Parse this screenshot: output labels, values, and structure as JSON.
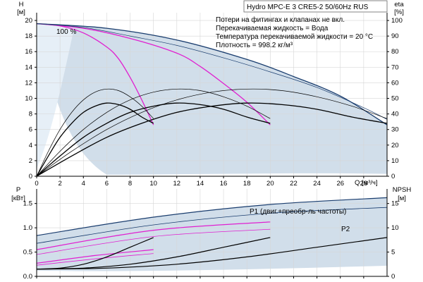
{
  "chart_data": [
    {
      "type": "line",
      "title": "Hydro MPC-E 3 CRE5-2 50/60Hz RUS",
      "notes": [
        "Потери на фитингах и клапанах не вкл.",
        "Перекачиваемая жидкость = Вода",
        "Температура перекачиваемой жидкости = 20 °C",
        "Плотность = 998.2 кг/м³"
      ],
      "speed_label": "100 %",
      "x_axis": {
        "label": "Q [м³/ч]",
        "range": [
          0,
          30
        ],
        "ticks": [
          0,
          2,
          4,
          6,
          8,
          10,
          12,
          14,
          16,
          18,
          20,
          22,
          24,
          26,
          28
        ]
      },
      "y_left": {
        "label": "H",
        "unit": "[м]",
        "range": [
          0,
          21
        ],
        "ticks": [
          0,
          2,
          4,
          6,
          8,
          10,
          12,
          14,
          16,
          18,
          20
        ]
      },
      "y_right": {
        "label": "eta",
        "unit": "[%]",
        "range": [
          0,
          105
        ],
        "ticks": [
          0,
          10,
          20,
          30,
          40,
          50,
          60,
          70,
          80,
          90,
          100
        ]
      },
      "series": [
        {
          "role": "head_1_pump",
          "color": "#e020d0",
          "points": [
            [
              0,
              19.6
            ],
            [
              2,
              19.3
            ],
            [
              4,
              18.4
            ],
            [
              6,
              16.6
            ],
            [
              7,
              15.1
            ],
            [
              8,
              12.7
            ],
            [
              9,
              9.8
            ],
            [
              10,
              6.6
            ]
          ]
        },
        {
          "role": "head_2_pumps",
          "color": "#e020d0",
          "points": [
            [
              0,
              19.6
            ],
            [
              4,
              19.0
            ],
            [
              8,
              17.7
            ],
            [
              12,
              15.8
            ],
            [
              14,
              14.1
            ],
            [
              16,
              11.9
            ],
            [
              18,
              9.5
            ],
            [
              20,
              6.6
            ]
          ]
        },
        {
          "role": "head_3_pumps_max",
          "color": "#1a3d6e",
          "points": [
            [
              0,
              19.6
            ],
            [
              6,
              19.0
            ],
            [
              12,
              17.5
            ],
            [
              18,
              15.0
            ],
            [
              22,
              12.8
            ],
            [
              26,
              10.3
            ],
            [
              30,
              6.6
            ]
          ]
        },
        {
          "role": "head_3_pumps_min",
          "color": "#1a3d6e",
          "points": [
            [
              0,
              19.6
            ],
            [
              4,
              19.1
            ],
            [
              8,
              18.0
            ],
            [
              12,
              16.8
            ],
            [
              16,
              15.2
            ],
            [
              20,
              13.4
            ],
            [
              24,
              11.4
            ],
            [
              28,
              8.8
            ],
            [
              30,
              7.3
            ]
          ]
        },
        {
          "role": "eta_1_pump",
          "color": "#000000",
          "points": [
            [
              0,
              0
            ],
            [
              1,
              13
            ],
            [
              2,
              25
            ],
            [
              3,
              34
            ],
            [
              4,
              41
            ],
            [
              5,
              45
            ],
            [
              6,
              47
            ],
            [
              7,
              46
            ],
            [
              8,
              43
            ],
            [
              9,
              38
            ],
            [
              10,
              34
            ]
          ]
        },
        {
          "role": "eta_2_pumps",
          "color": "#000000",
          "points": [
            [
              0,
              0
            ],
            [
              2,
              13
            ],
            [
              4,
              25
            ],
            [
              6,
              34
            ],
            [
              8,
              41
            ],
            [
              10,
              45
            ],
            [
              12,
              47
            ],
            [
              14,
              46
            ],
            [
              16,
              43
            ],
            [
              18,
              38
            ],
            [
              20,
              34
            ]
          ]
        },
        {
          "role": "eta_3_pumps",
          "color": "#000000",
          "points": [
            [
              0,
              0
            ],
            [
              3,
              13
            ],
            [
              6,
              25
            ],
            [
              9,
              34
            ],
            [
              12,
              41
            ],
            [
              15,
              45
            ],
            [
              18,
              47
            ],
            [
              21,
              46
            ],
            [
              24,
              43
            ],
            [
              27,
              38
            ],
            [
              30,
              34
            ]
          ]
        },
        {
          "role": "eta_1_pump_thin",
          "color": "#000000",
          "points": [
            [
              0,
              0
            ],
            [
              1,
              16
            ],
            [
              2,
              30
            ],
            [
              3,
              41
            ],
            [
              4,
              49
            ],
            [
              5,
              54
            ],
            [
              6,
              56
            ],
            [
              7,
              55
            ],
            [
              8,
              51
            ],
            [
              9,
              45
            ],
            [
              10,
              37
            ]
          ]
        },
        {
          "role": "eta_2_pumps_thin",
          "color": "#000000",
          "points": [
            [
              0,
              0
            ],
            [
              2,
              16
            ],
            [
              4,
              30
            ],
            [
              6,
              41
            ],
            [
              8,
              49
            ],
            [
              10,
              54
            ],
            [
              12,
              56
            ],
            [
              14,
              55
            ],
            [
              16,
              51
            ],
            [
              18,
              45
            ],
            [
              20,
              37
            ]
          ]
        },
        {
          "role": "eta_3_pumps_thin",
          "color": "#000000",
          "points": [
            [
              0,
              0
            ],
            [
              3,
              16
            ],
            [
              6,
              30
            ],
            [
              9,
              41
            ],
            [
              12,
              49
            ],
            [
              15,
              54
            ],
            [
              18,
              56
            ],
            [
              21,
              55
            ],
            [
              24,
              51
            ],
            [
              27,
              45
            ],
            [
              30,
              37
            ]
          ]
        }
      ]
    },
    {
      "type": "line",
      "x_axis": {
        "range": [
          0,
          30
        ],
        "ticks": [
          0,
          2,
          4,
          6,
          8,
          10,
          12,
          14,
          16,
          18,
          20,
          22,
          24,
          26,
          28
        ]
      },
      "y_left": {
        "label": "P",
        "unit": "[кВт]",
        "range": [
          0,
          1.8
        ],
        "ticks": [
          0,
          0.5,
          1.0,
          1.5
        ]
      },
      "y_right": {
        "label": "NPSH",
        "unit": "[м]",
        "range": [
          0,
          18
        ],
        "ticks": [
          0,
          5,
          10,
          15
        ]
      },
      "labels": {
        "p1": "P1 (двиг.+преобр-ль частоты)",
        "p2": "P2"
      },
      "series": [
        {
          "role": "p1_total",
          "color": "#1a3d6e",
          "points": [
            [
              0,
              0.84
            ],
            [
              10,
              1.22
            ],
            [
              20,
              1.48
            ],
            [
              30,
              1.62
            ]
          ]
        },
        {
          "role": "p2_total",
          "color": "#1a3d6e",
          "points": [
            [
              0,
              0.68
            ],
            [
              10,
              1.06
            ],
            [
              20,
              1.3
            ],
            [
              30,
              1.42
            ]
          ]
        },
        {
          "role": "p1_2_pumps",
          "color": "#e020d0",
          "points": [
            [
              0,
              0.55
            ],
            [
              10,
              0.95
            ],
            [
              20,
              1.12
            ]
          ]
        },
        {
          "role": "p2_2_pumps",
          "color": "#e020d0",
          "points": [
            [
              0,
              0.45
            ],
            [
              10,
              0.82
            ],
            [
              20,
              0.97
            ]
          ]
        },
        {
          "role": "p1_1_pump",
          "color": "#e020d0",
          "points": [
            [
              0,
              0.27
            ],
            [
              5,
              0.43
            ],
            [
              10,
              0.55
            ]
          ]
        },
        {
          "role": "p2_1_pump",
          "color": "#e020d0",
          "points": [
            [
              0,
              0.23
            ],
            [
              5,
              0.36
            ],
            [
              10,
              0.47
            ]
          ]
        },
        {
          "role": "npsh_1_pump",
          "color": "#000000",
          "points": [
            [
              0,
              1.5
            ],
            [
              2,
              1.7
            ],
            [
              4,
              2.5
            ],
            [
              6,
              4
            ],
            [
              8,
              6
            ],
            [
              10,
              8
            ]
          ]
        },
        {
          "role": "npsh_2_pumps",
          "color": "#000000",
          "points": [
            [
              0,
              1.5
            ],
            [
              4,
              1.7
            ],
            [
              8,
              2.5
            ],
            [
              12,
              4
            ],
            [
              16,
              6
            ],
            [
              20,
              8
            ]
          ]
        },
        {
          "role": "npsh_3_pumps",
          "color": "#000000",
          "points": [
            [
              0,
              1.5
            ],
            [
              6,
              1.7
            ],
            [
              12,
              2.5
            ],
            [
              18,
              4
            ],
            [
              24,
              6
            ],
            [
              30,
              8
            ]
          ]
        }
      ]
    }
  ]
}
